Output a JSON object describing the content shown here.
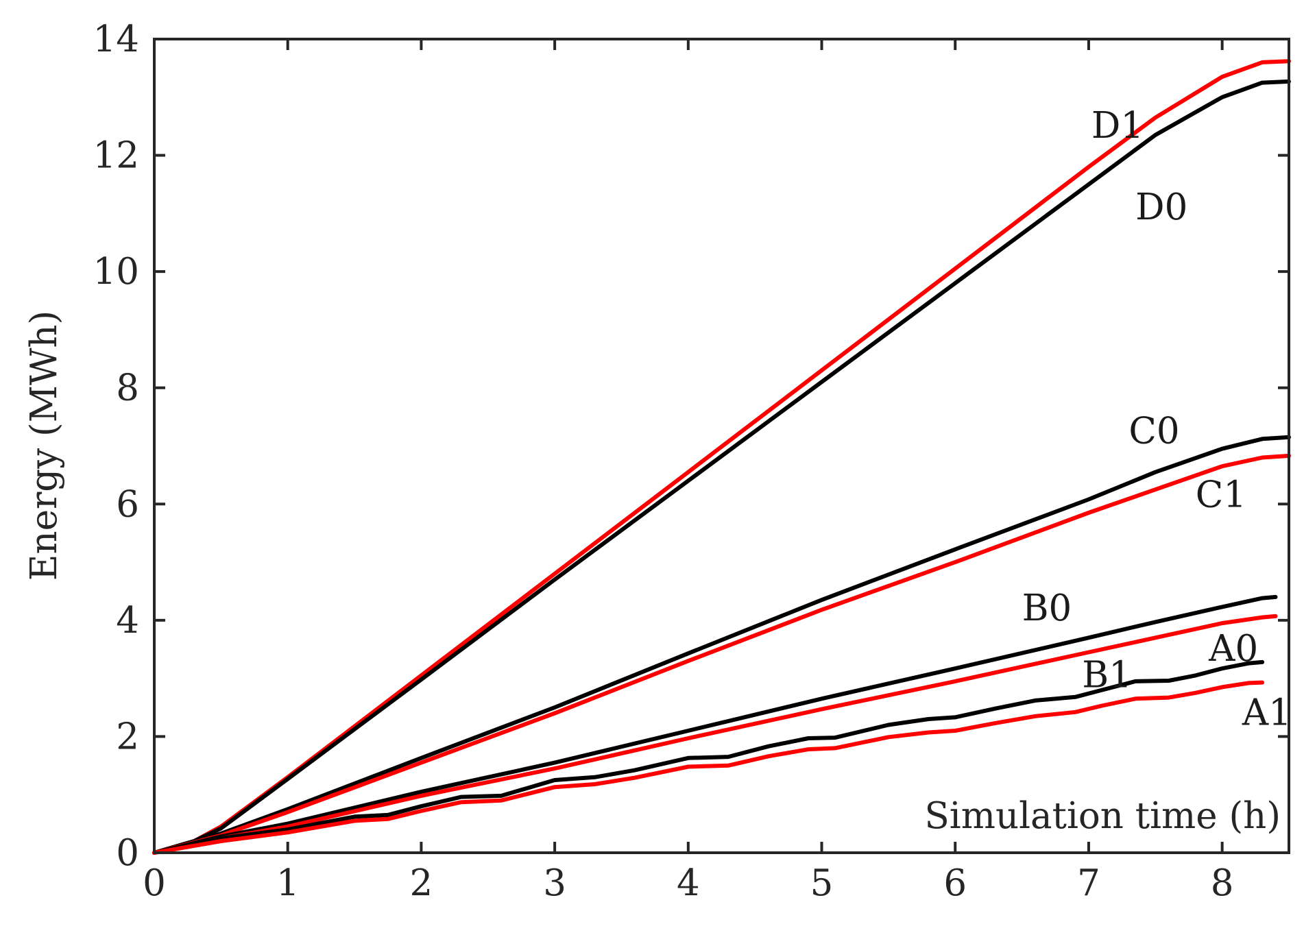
{
  "chart_data": {
    "type": "line",
    "title": "",
    "xlabel": "Simulation time (h)",
    "ylabel": "Energy (MWh)",
    "xlim": [
      0,
      8.5
    ],
    "ylim": [
      0,
      14
    ],
    "xticks": [
      "0",
      "1",
      "2",
      "3",
      "4",
      "5",
      "6",
      "7",
      "8"
    ],
    "yticks": [
      "0",
      "2",
      "4",
      "6",
      "8",
      "10",
      "12",
      "14"
    ],
    "grid": false,
    "legend": "none",
    "colors": {
      "black": "#000000",
      "red": "#ff0000",
      "axis": "#262626"
    },
    "series": [
      {
        "name": "D1",
        "color": "#ff0000",
        "x": [
          0,
          0.3,
          0.5,
          1,
          2,
          3,
          4,
          5,
          6,
          7,
          7.5,
          8,
          8.3,
          8.5
        ],
        "y": [
          0,
          0.2,
          0.45,
          1.3,
          3.05,
          4.8,
          6.55,
          8.3,
          10.05,
          11.8,
          12.65,
          13.35,
          13.6,
          13.62
        ]
      },
      {
        "name": "D0",
        "color": "#000000",
        "x": [
          0,
          0.3,
          0.5,
          1,
          2,
          3,
          4,
          5,
          6,
          7,
          7.5,
          8,
          8.3,
          8.5
        ],
        "y": [
          0,
          0.2,
          0.42,
          1.27,
          2.98,
          4.7,
          6.4,
          8.1,
          9.8,
          11.5,
          12.35,
          13.0,
          13.25,
          13.27
        ]
      },
      {
        "name": "C0",
        "color": "#000000",
        "x": [
          0,
          0.5,
          1,
          2,
          3,
          4,
          5,
          6,
          7,
          7.5,
          8,
          8.3,
          8.5
        ],
        "y": [
          0,
          0.33,
          0.75,
          1.63,
          2.5,
          3.43,
          4.35,
          5.22,
          6.08,
          6.55,
          6.95,
          7.12,
          7.15
        ]
      },
      {
        "name": "C1",
        "color": "#ff0000",
        "x": [
          0,
          0.5,
          1,
          2,
          3,
          4,
          5,
          6,
          7,
          7.5,
          8,
          8.3,
          8.5
        ],
        "y": [
          0,
          0.3,
          0.7,
          1.55,
          2.4,
          3.3,
          4.18,
          5.0,
          5.85,
          6.25,
          6.65,
          6.8,
          6.83
        ]
      },
      {
        "name": "B0",
        "color": "#000000",
        "x": [
          0,
          0.5,
          1,
          2,
          3,
          4,
          5,
          6,
          7,
          7.5,
          8,
          8.3,
          8.4
        ],
        "y": [
          0,
          0.28,
          0.5,
          1.05,
          1.55,
          2.1,
          2.65,
          3.17,
          3.7,
          3.97,
          4.23,
          4.38,
          4.4
        ]
      },
      {
        "name": "B1",
        "color": "#ff0000",
        "x": [
          0,
          0.5,
          1,
          2,
          3,
          4,
          5,
          6,
          7,
          7.5,
          8,
          8.3,
          8.4
        ],
        "y": [
          0,
          0.25,
          0.45,
          0.98,
          1.45,
          1.97,
          2.47,
          2.95,
          3.45,
          3.7,
          3.95,
          4.05,
          4.07
        ]
      },
      {
        "name": "A0",
        "color": "#000000",
        "x": [
          0,
          0.5,
          1,
          1.5,
          1.75,
          2,
          2.3,
          2.6,
          3,
          3.3,
          3.6,
          4,
          4.3,
          4.6,
          4.9,
          5.1,
          5.5,
          5.8,
          6,
          6.3,
          6.6,
          6.9,
          7.1,
          7.35,
          7.6,
          7.8,
          8.0,
          8.2,
          8.3
        ],
        "y": [
          0,
          0.25,
          0.4,
          0.62,
          0.65,
          0.8,
          0.96,
          0.98,
          1.25,
          1.3,
          1.42,
          1.63,
          1.65,
          1.83,
          1.97,
          1.98,
          2.2,
          2.3,
          2.33,
          2.48,
          2.62,
          2.68,
          2.8,
          2.95,
          2.96,
          3.05,
          3.17,
          3.26,
          3.28
        ]
      },
      {
        "name": "A1",
        "color": "#ff0000",
        "x": [
          0,
          0.5,
          1,
          1.5,
          1.75,
          2,
          2.3,
          2.6,
          3,
          3.3,
          3.6,
          4,
          4.3,
          4.6,
          4.9,
          5.1,
          5.5,
          5.8,
          6,
          6.3,
          6.6,
          6.9,
          7.1,
          7.35,
          7.6,
          7.8,
          8.0,
          8.2,
          8.3
        ],
        "y": [
          0,
          0.2,
          0.35,
          0.55,
          0.58,
          0.72,
          0.87,
          0.9,
          1.13,
          1.18,
          1.29,
          1.48,
          1.5,
          1.66,
          1.78,
          1.8,
          1.99,
          2.07,
          2.1,
          2.23,
          2.35,
          2.42,
          2.53,
          2.65,
          2.67,
          2.75,
          2.85,
          2.92,
          2.93
        ]
      }
    ],
    "annotations": [
      {
        "text": "D1",
        "x": 7.02,
        "y": 12.3
      },
      {
        "text": "D0",
        "x": 7.35,
        "y": 10.9
      },
      {
        "text": "C0",
        "x": 7.3,
        "y": 7.05
      },
      {
        "text": "C1",
        "x": 7.8,
        "y": 5.95
      },
      {
        "text": "B0",
        "x": 6.5,
        "y": 4.0
      },
      {
        "text": "B1",
        "x": 6.95,
        "y": 2.85
      },
      {
        "text": "A0",
        "x": 7.9,
        "y": 3.3
      },
      {
        "text": "A1",
        "x": 8.15,
        "y": 2.2
      }
    ]
  }
}
